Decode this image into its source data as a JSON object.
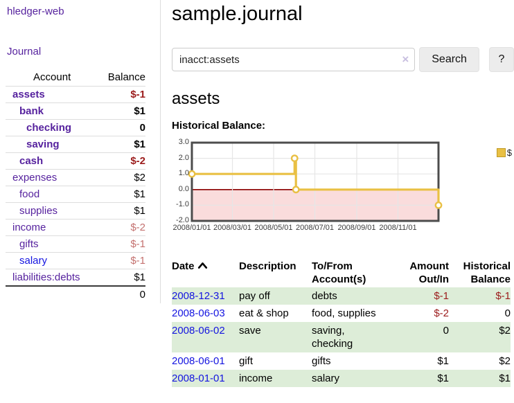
{
  "app": {
    "brand": "hledger-web",
    "nav_journal": "Journal"
  },
  "colors": {
    "link_purple": "#56229e",
    "link_blue": "#1414e0",
    "negative_red": "#9b1b1b",
    "negative_muted_red": "#c4716f",
    "row_green": "#ddedd8",
    "series_yellow": "#e9c044",
    "negative_region_pink": "#fadcdc",
    "zero_line_red": "#8b0000",
    "chart_border_gray": "#4c4c4c",
    "grid_gray": "#e6e6e6"
  },
  "sidebar": {
    "columns": {
      "account": "Account",
      "balance": "Balance"
    },
    "accounts": [
      {
        "name": "assets",
        "depth": 1,
        "balance": "$-1",
        "bold": true,
        "balance_class": "neg-strong"
      },
      {
        "name": "bank",
        "depth": 2,
        "balance": "$1",
        "bold": true,
        "balance_class": ""
      },
      {
        "name": "checking",
        "depth": 3,
        "balance": "0",
        "bold": true,
        "balance_class": ""
      },
      {
        "name": "saving",
        "depth": 3,
        "balance": "$1",
        "bold": true,
        "balance_class": ""
      },
      {
        "name": "cash",
        "depth": 2,
        "balance": "$-2",
        "bold": true,
        "balance_class": "neg-strong"
      },
      {
        "name": "expenses",
        "depth": 1,
        "balance": "$2",
        "bold": false,
        "balance_class": ""
      },
      {
        "name": "food",
        "depth": 2,
        "balance": "$1",
        "bold": false,
        "balance_class": ""
      },
      {
        "name": "supplies",
        "depth": 2,
        "balance": "$1",
        "bold": false,
        "balance_class": ""
      },
      {
        "name": "income",
        "depth": 1,
        "balance": "$-2",
        "bold": false,
        "balance_class": "neg-muted"
      },
      {
        "name": "gifts",
        "depth": 2,
        "balance": "$-1",
        "bold": false,
        "balance_class": "neg-muted"
      },
      {
        "name": "salary",
        "depth": 2,
        "balance": "$-1",
        "bold": false,
        "balance_class": "neg-muted",
        "blue": true
      },
      {
        "name": "liabilities:debts",
        "depth": 1,
        "balance": "$1",
        "bold": false,
        "balance_class": ""
      }
    ],
    "total": "0"
  },
  "header": {
    "title": "sample.journal"
  },
  "search": {
    "value": "inacct:assets",
    "clear_icon": "×",
    "button_label": "Search",
    "help_label": "?"
  },
  "account_page": {
    "title": "assets",
    "chart_caption": "Historical Balance:"
  },
  "chart_data": {
    "type": "line",
    "title": "Historical Balance",
    "step": true,
    "x": [
      "2008-01-01",
      "2008-06-01",
      "2008-06-03",
      "2008-12-31"
    ],
    "series": [
      {
        "name": "$",
        "values": [
          1,
          2,
          0,
          -1
        ],
        "color": "#e9c044"
      }
    ],
    "ylim": [
      -2,
      3
    ],
    "xrange": [
      "2008-01-01",
      "2008-12-31"
    ],
    "yticks": [
      "3.0",
      "2.0",
      "1.0",
      "0.0",
      "-1.0",
      "-2.0"
    ],
    "xticks": [
      "2008/01/01",
      "2008/03/01",
      "2008/05/01",
      "2008/07/01",
      "2008/09/01",
      "2008/11/01"
    ],
    "grid": true,
    "legend_position": "top-right",
    "negative_region_shaded": true
  },
  "register": {
    "headers": [
      "Date",
      "Description",
      "To/From Account(s)",
      "Amount Out/In",
      "Historical Balance"
    ],
    "rows": [
      {
        "date": "2008-12-31",
        "description": "pay off",
        "accounts": "debts",
        "amount": "$-1",
        "balance": "$-1",
        "amount_class": "neg",
        "balance_class": "neg"
      },
      {
        "date": "2008-06-03",
        "description": "eat & shop",
        "accounts": "food, supplies",
        "amount": "$-2",
        "balance": "0",
        "amount_class": "neg",
        "balance_class": ""
      },
      {
        "date": "2008-06-02",
        "description": "save",
        "accounts": "saving, checking",
        "amount": "0",
        "balance": "$2",
        "amount_class": "",
        "balance_class": ""
      },
      {
        "date": "2008-06-01",
        "description": "gift",
        "accounts": "gifts",
        "amount": "$1",
        "balance": "$2",
        "amount_class": "",
        "balance_class": ""
      },
      {
        "date": "2008-01-01",
        "description": "income",
        "accounts": "salary",
        "amount": "$1",
        "balance": "$1",
        "amount_class": "",
        "balance_class": ""
      }
    ]
  }
}
